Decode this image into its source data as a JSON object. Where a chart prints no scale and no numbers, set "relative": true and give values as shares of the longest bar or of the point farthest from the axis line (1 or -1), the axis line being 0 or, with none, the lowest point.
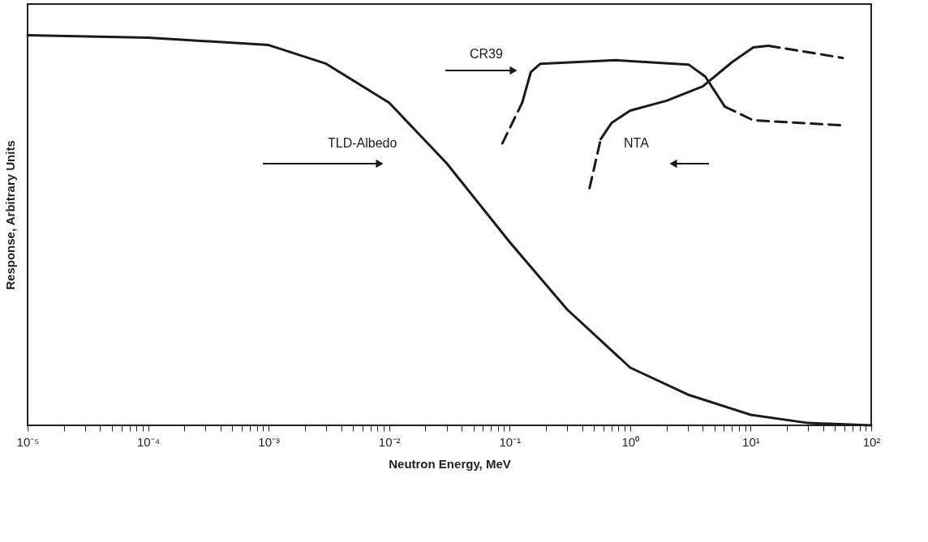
{
  "chart_data": {
    "type": "line",
    "relative": true,
    "log": "x",
    "grid": false,
    "xlabel": "Neutron Energy, MeV",
    "ylabel": "Response, Arbitrary Units",
    "xlim": [
      1e-05,
      100
    ],
    "xticks": [
      {
        "value": 1e-05,
        "label": "10⁻⁵"
      },
      {
        "value": 0.0001,
        "label": "10⁻⁴"
      },
      {
        "value": 0.001,
        "label": "10⁻³"
      },
      {
        "value": 0.01,
        "label": "10⁻²"
      },
      {
        "value": 0.1,
        "label": "10⁻¹"
      },
      {
        "value": 1,
        "label": "10⁰"
      },
      {
        "value": 10,
        "label": "10¹"
      },
      {
        "value": 100,
        "label": "10²"
      },
      {
        "value": 2e-05,
        "label": null
      },
      {
        "value": 3e-05,
        "label": null
      },
      {
        "value": 4e-05,
        "label": null
      },
      {
        "value": 5e-05,
        "label": null
      },
      {
        "value": 6e-05,
        "label": null
      },
      {
        "value": 7e-05,
        "label": null
      },
      {
        "value": 8e-05,
        "label": null
      },
      {
        "value": 9e-05,
        "label": null
      },
      {
        "value": 0.0002,
        "label": null
      },
      {
        "value": 0.0003,
        "label": null
      },
      {
        "value": 0.0004,
        "label": null
      },
      {
        "value": 0.0005,
        "label": null
      },
      {
        "value": 0.0006,
        "label": null
      },
      {
        "value": 0.0007,
        "label": null
      },
      {
        "value": 0.0008,
        "label": null
      },
      {
        "value": 0.0009,
        "label": null
      },
      {
        "value": 0.002,
        "label": null
      },
      {
        "value": 0.003,
        "label": null
      },
      {
        "value": 0.004,
        "label": null
      },
      {
        "value": 0.005,
        "label": null
      },
      {
        "value": 0.006,
        "label": null
      },
      {
        "value": 0.007,
        "label": null
      },
      {
        "value": 0.008,
        "label": null
      },
      {
        "value": 0.009,
        "label": null
      },
      {
        "value": 0.02,
        "label": null
      },
      {
        "value": 0.03,
        "label": null
      },
      {
        "value": 0.04,
        "label": null
      },
      {
        "value": 0.05,
        "label": null
      },
      {
        "value": 0.06,
        "label": null
      },
      {
        "value": 0.07,
        "label": null
      },
      {
        "value": 0.08,
        "label": null
      },
      {
        "value": 0.09,
        "label": null
      },
      {
        "value": 0.2,
        "label": null
      },
      {
        "value": 0.3,
        "label": null
      },
      {
        "value": 0.4,
        "label": null
      },
      {
        "value": 0.5,
        "label": null
      },
      {
        "value": 0.6,
        "label": null
      },
      {
        "value": 0.7,
        "label": null
      },
      {
        "value": 0.8,
        "label": null
      },
      {
        "value": 0.9,
        "label": null
      },
      {
        "value": 2,
        "label": null
      },
      {
        "value": 3,
        "label": null
      },
      {
        "value": 4,
        "label": null
      },
      {
        "value": 5,
        "label": null
      },
      {
        "value": 6,
        "label": null
      },
      {
        "value": 7,
        "label": null
      },
      {
        "value": 8,
        "label": null
      },
      {
        "value": 9,
        "label": null
      },
      {
        "value": 20,
        "label": null
      },
      {
        "value": 30,
        "label": null
      },
      {
        "value": 40,
        "label": null
      },
      {
        "value": 50,
        "label": null
      },
      {
        "value": 60,
        "label": null
      },
      {
        "value": 70,
        "label": null
      },
      {
        "value": 80,
        "label": null
      },
      {
        "value": 90,
        "label": null
      }
    ],
    "series": [
      {
        "name": "TLD-Albedo",
        "color": "#1a1a1a",
        "line_style": "solid",
        "x": [
          1e-05,
          0.0001,
          0.001,
          0.003,
          0.01,
          0.03,
          0.1,
          0.3,
          1,
          3,
          10,
          30,
          100
        ],
        "values": [
          1,
          0.994,
          0.975,
          0.927,
          0.827,
          0.672,
          0.47,
          0.297,
          0.148,
          0.079,
          0.027,
          0.006,
          0
        ]
      },
      {
        "color": "#1a1a1a",
        "line_style": "dashed",
        "x": [
          0.087,
          0.127
        ],
        "values": [
          0.723,
          0.827
        ]
      },
      {
        "name": "CR39",
        "color": "#1a1a1a",
        "line_style": "solid",
        "x": [
          0.127,
          0.15,
          0.18,
          0.76,
          3.05,
          4.2,
          6.1
        ],
        "values": [
          0.827,
          0.906,
          0.927,
          0.936,
          0.925,
          0.894,
          0.817
        ]
      },
      {
        "color": "#1a1a1a",
        "line_style": "dashed",
        "x": [
          6.1,
          10.5,
          58
        ],
        "values": [
          0.817,
          0.782,
          0.769
        ]
      },
      {
        "color": "#1a1a1a",
        "line_style": "dashed",
        "x": [
          0.46,
          0.57
        ],
        "values": [
          0.608,
          0.734
        ]
      },
      {
        "name": "NTA",
        "color": "#1a1a1a",
        "line_style": "solid",
        "x": [
          0.57,
          0.7,
          1,
          2,
          4,
          7,
          10.5,
          14
        ],
        "values": [
          0.734,
          0.775,
          0.807,
          0.832,
          0.869,
          0.931,
          0.969,
          0.973
        ]
      },
      {
        "color": "#1a1a1a",
        "line_style": "dashed",
        "x": [
          14,
          58
        ],
        "values": [
          0.973,
          0.942
        ]
      }
    ]
  }
}
